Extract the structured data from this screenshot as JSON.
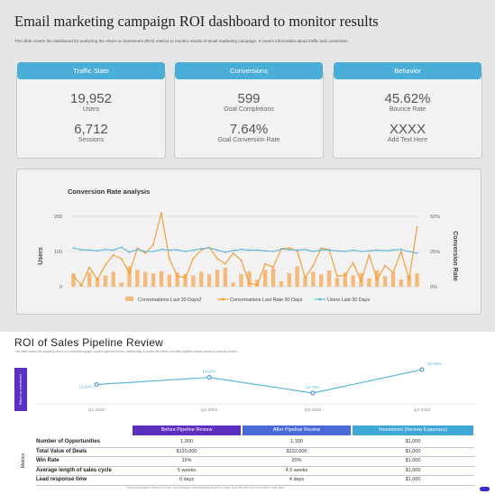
{
  "dashboard": {
    "title": "Email marketing campaign ROI dashboard to monitor results",
    "subtitle": "This slide covers the dashboard for analyzing the return on investment (ROI) metrics to monitor results of email marketing campaign. It covers information about traffic and conversion.",
    "cards": [
      {
        "header": "Traffic Stats",
        "value1": "19,952",
        "label1": "Users",
        "value2": "6,712",
        "label2": "Sessions"
      },
      {
        "header": "Conversions",
        "value1": "599",
        "label1": "Goal Completions",
        "value2": "7.64%",
        "label2": "Goal Conversion Rate"
      },
      {
        "header": "Behavior",
        "value1": "45.62%",
        "label1": "Bounce Rate",
        "value2": "XXXX",
        "label2": "Add Text Here"
      }
    ],
    "colors": {
      "header": "#4aaed7",
      "bars": "#f6b97c",
      "line_orange": "#f39a2b",
      "line_blue": "#5bb8d9"
    }
  },
  "chart_data": [
    {
      "type": "bar",
      "title": "Conversion Rate analysis",
      "ylabel": "Users",
      "y2label": "Conversion Rate",
      "yticks": [
        "200",
        "100",
        "0"
      ],
      "y2ticks": [
        "50%",
        "25%",
        "0%"
      ],
      "ylim": [
        0,
        200
      ],
      "y2lim": [
        0,
        0.5
      ],
      "legend_position": "bottom",
      "series": [
        {
          "name": "Conversations Last 30 Days2",
          "kind": "bar",
          "axis": "left",
          "values": [
            38,
            5,
            40,
            25,
            32,
            42,
            12,
            58,
            48,
            42,
            38,
            44,
            34,
            40,
            36,
            32,
            42,
            35,
            48,
            54,
            12,
            36,
            44,
            20,
            48,
            52,
            16,
            38,
            58,
            28,
            42,
            35,
            46,
            25,
            40,
            32,
            38,
            24,
            46,
            30,
            40,
            20,
            32,
            38
          ]
        },
        {
          "name": "Conversations Last Rate 30 Days",
          "kind": "line",
          "axis": "left",
          "values": [
            30,
            5,
            55,
            20,
            62,
            90,
            80,
            38,
            110,
            95,
            120,
            210,
            80,
            30,
            25,
            80,
            105,
            112,
            80,
            65,
            95,
            75,
            10,
            5,
            65,
            55,
            108,
            110,
            102,
            25,
            60,
            110,
            105,
            30,
            32,
            68,
            15,
            90,
            20,
            60,
            40,
            100,
            20,
            170
          ]
        },
        {
          "name": "Users Last 30 Days",
          "kind": "line",
          "axis": "left",
          "values": [
            110,
            105,
            104,
            102,
            106,
            104,
            112,
            98,
            106,
            100,
            100,
            106,
            104,
            105,
            100,
            104,
            108,
            110,
            104,
            98,
            103,
            106,
            104,
            104,
            102,
            100,
            107,
            105,
            104,
            106,
            100,
            105,
            104,
            102,
            100,
            104,
            100,
            102,
            104,
            102,
            104,
            106,
            100,
            95
          ]
        }
      ]
    },
    {
      "type": "line",
      "title": "",
      "categories": [
        "Q1 2022",
        "Q2 2022",
        "Q3 2022",
        "Q4 2022"
      ],
      "series": [
        {
          "values": [
            13.1,
            14.0,
            12.0,
            15.0
          ]
        }
      ],
      "data_labels": [
        "13.10%",
        "14.00%",
        "12.00%",
        "15.00%"
      ]
    }
  ],
  "roi": {
    "title": "ROI of Sales Pipeline Review",
    "subtitle": "This slide shows the quarterly return on investment graph of sales pipeline review. Additionally, it shows the before and after pipeline review values of various metrics.",
    "side_tab": "Return on Investment",
    "metrics_tab": "Metrics",
    "columns": [
      "Before Pipeline Review",
      "After Pipeline Review",
      "Investment (Review Expenses)"
    ],
    "rows": [
      {
        "label": "Number of Opportunities",
        "values": [
          "1,000",
          "1,100",
          "$1,000"
        ]
      },
      {
        "label": "Total Value of Deals",
        "values": [
          "$120,000",
          "$132,000",
          "$1,000"
        ]
      },
      {
        "label": "Win Rate",
        "values": [
          "15%",
          "20%",
          "$1,000"
        ]
      },
      {
        "label": "Average length of sales cycle",
        "values": [
          "5 weeks",
          "4.5 weeks",
          "$1,000"
        ]
      },
      {
        "label": "Lead response time",
        "values": [
          "0 days",
          "4 days",
          "$1,000"
        ]
      }
    ],
    "footer": "This graph/chart is linked to excel, and changes automatically based on data. Just left click on it and select \"edit data\".",
    "column_colors": [
      "#5b2fc0",
      "#4a6ad8",
      "#3ea7d6"
    ]
  }
}
